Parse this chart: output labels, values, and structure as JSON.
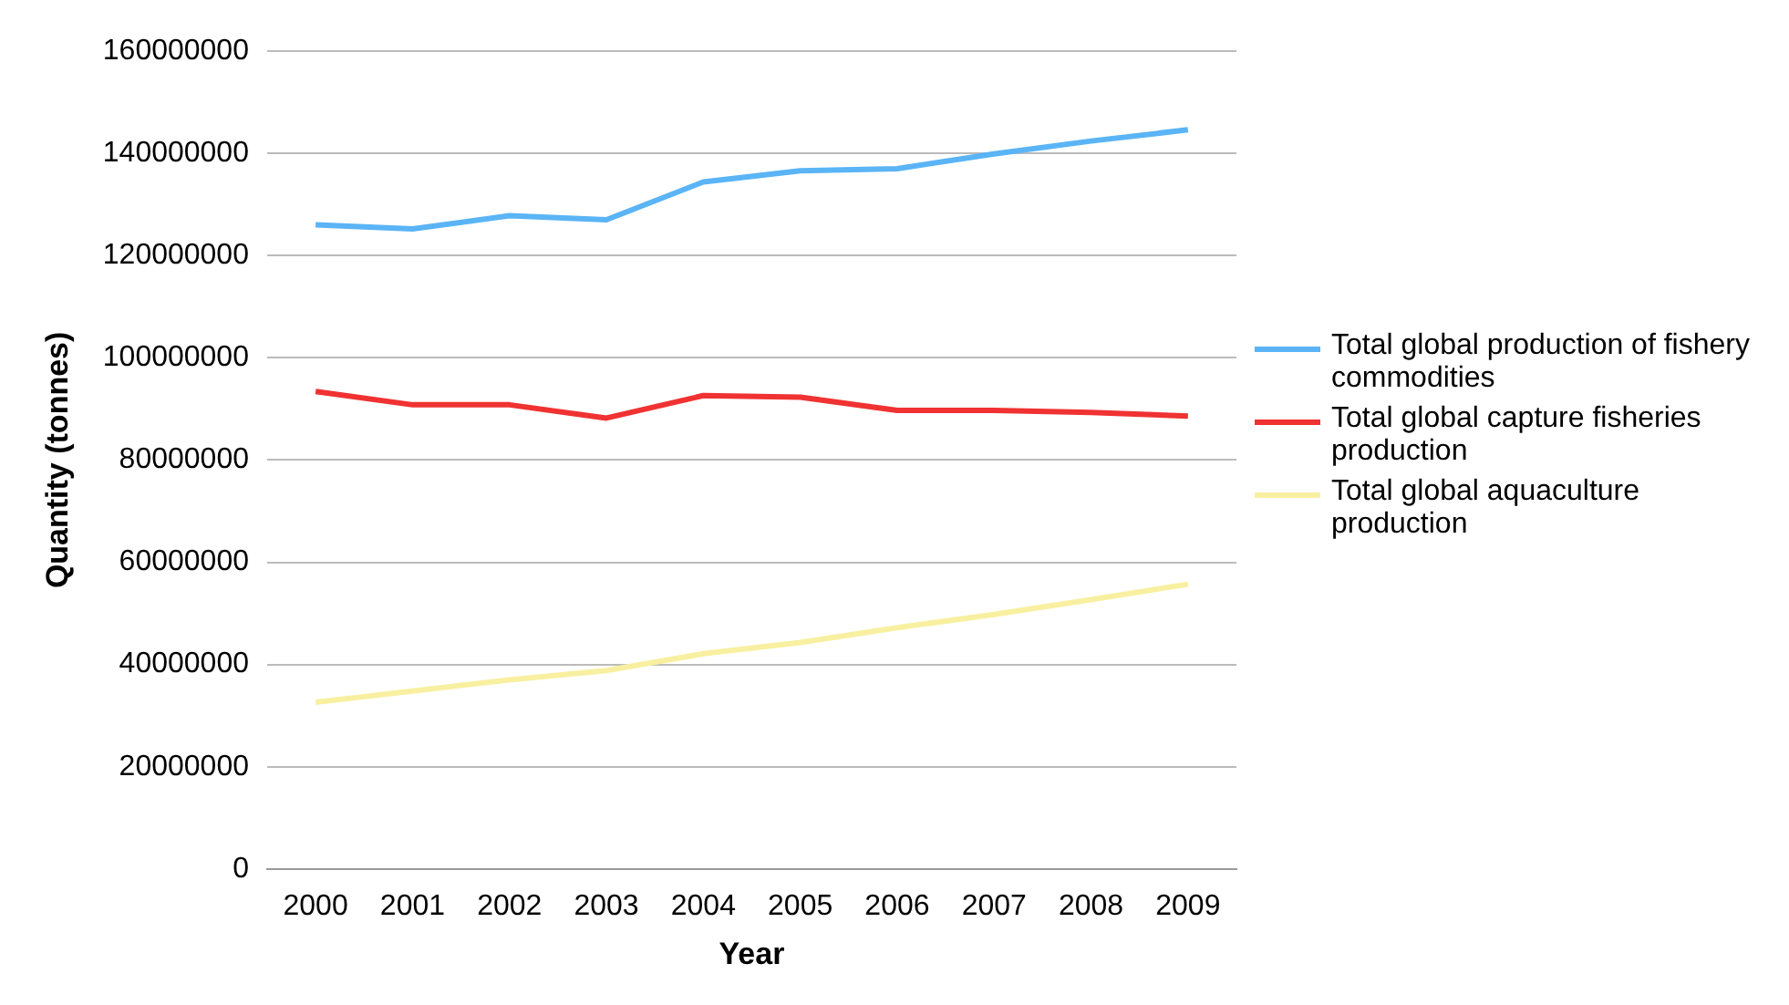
{
  "chart_data": {
    "type": "line",
    "xlabel": "Year",
    "ylabel": "Quantity (tonnes)",
    "categories": [
      "2000",
      "2001",
      "2002",
      "2003",
      "2004",
      "2005",
      "2006",
      "2007",
      "2008",
      "2009"
    ],
    "series": [
      {
        "name": "Total global production of fishery commodities",
        "color": "#5ab4f5",
        "values": [
          126000000,
          125200000,
          127800000,
          127000000,
          134400000,
          136600000,
          137000000,
          139900000,
          142400000,
          144600000
        ]
      },
      {
        "name": "Total global capture fisheries production",
        "color": "#f03232",
        "values": [
          93400000,
          90800000,
          90800000,
          88200000,
          92600000,
          92300000,
          89700000,
          89700000,
          89300000,
          88600000
        ]
      },
      {
        "name": "Total global aquaculture production",
        "color": "#f8f0a0",
        "values": [
          32600000,
          34800000,
          37000000,
          38800000,
          42100000,
          44300000,
          47200000,
          49800000,
          52700000,
          55700000
        ]
      }
    ],
    "ylim": [
      0,
      160000000
    ],
    "yticks": [
      0,
      20000000,
      40000000,
      60000000,
      80000000,
      100000000,
      120000000,
      140000000,
      160000000
    ],
    "grid": "y",
    "legend": "right",
    "marker": "none",
    "line_style": "solid"
  }
}
